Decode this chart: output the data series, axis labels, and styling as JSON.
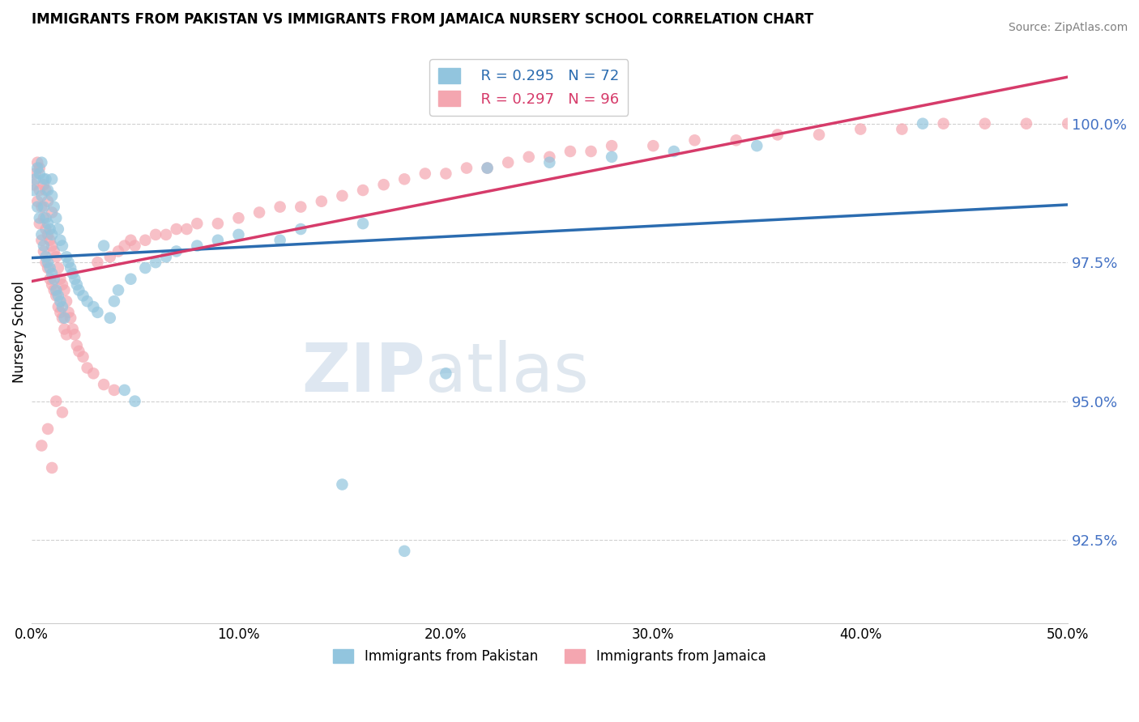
{
  "title": "IMMIGRANTS FROM PAKISTAN VS IMMIGRANTS FROM JAMAICA NURSERY SCHOOL CORRELATION CHART",
  "source": "Source: ZipAtlas.com",
  "ylabel": "Nursery School",
  "xlim": [
    0.0,
    0.5
  ],
  "ylim": [
    91.0,
    101.5
  ],
  "yticks": [
    92.5,
    95.0,
    97.5,
    100.0
  ],
  "ytick_labels": [
    "92.5%",
    "95.0%",
    "97.5%",
    "100.0%"
  ],
  "xticks": [
    0.0,
    0.1,
    0.2,
    0.3,
    0.4,
    0.5
  ],
  "xtick_labels": [
    "0.0%",
    "10.0%",
    "20.0%",
    "30.0%",
    "40.0%",
    "50.0%"
  ],
  "pakistan_color": "#92c5de",
  "jamaica_color": "#f4a6b0",
  "pakistan_line_color": "#2b6cb0",
  "jamaica_line_color": "#d63b6a",
  "legend_R_pakistan": "R = 0.295",
  "legend_N_pakistan": "N = 72",
  "legend_R_jamaica": "R = 0.297",
  "legend_N_jamaica": "N = 96",
  "pakistan_x": [
    0.001,
    0.002,
    0.003,
    0.003,
    0.004,
    0.004,
    0.005,
    0.005,
    0.005,
    0.006,
    0.006,
    0.006,
    0.007,
    0.007,
    0.007,
    0.008,
    0.008,
    0.008,
    0.009,
    0.009,
    0.01,
    0.01,
    0.01,
    0.01,
    0.011,
    0.011,
    0.012,
    0.012,
    0.013,
    0.013,
    0.014,
    0.014,
    0.015,
    0.015,
    0.016,
    0.017,
    0.018,
    0.019,
    0.02,
    0.021,
    0.022,
    0.023,
    0.025,
    0.027,
    0.03,
    0.032,
    0.035,
    0.038,
    0.04,
    0.042,
    0.045,
    0.048,
    0.05,
    0.055,
    0.06,
    0.065,
    0.07,
    0.08,
    0.09,
    0.1,
    0.12,
    0.13,
    0.15,
    0.16,
    0.18,
    0.2,
    0.22,
    0.25,
    0.28,
    0.31,
    0.35,
    0.43
  ],
  "pakistan_y": [
    98.8,
    99.0,
    98.5,
    99.2,
    98.3,
    99.1,
    98.0,
    98.7,
    99.3,
    97.8,
    98.5,
    99.0,
    97.6,
    98.3,
    99.0,
    97.5,
    98.2,
    98.8,
    97.4,
    98.1,
    97.3,
    98.0,
    98.7,
    99.0,
    97.2,
    98.5,
    97.0,
    98.3,
    96.9,
    98.1,
    96.8,
    97.9,
    96.7,
    97.8,
    96.5,
    97.6,
    97.5,
    97.4,
    97.3,
    97.2,
    97.1,
    97.0,
    96.9,
    96.8,
    96.7,
    96.6,
    97.8,
    96.5,
    96.8,
    97.0,
    95.2,
    97.2,
    95.0,
    97.4,
    97.5,
    97.6,
    97.7,
    97.8,
    97.9,
    98.0,
    97.9,
    98.1,
    93.5,
    98.2,
    92.3,
    95.5,
    99.2,
    99.3,
    99.4,
    99.5,
    99.6,
    100.0
  ],
  "jamaica_x": [
    0.001,
    0.002,
    0.003,
    0.003,
    0.004,
    0.004,
    0.004,
    0.005,
    0.005,
    0.006,
    0.006,
    0.006,
    0.007,
    0.007,
    0.007,
    0.008,
    0.008,
    0.008,
    0.009,
    0.009,
    0.01,
    0.01,
    0.01,
    0.011,
    0.011,
    0.012,
    0.012,
    0.013,
    0.013,
    0.014,
    0.014,
    0.015,
    0.015,
    0.016,
    0.016,
    0.017,
    0.017,
    0.018,
    0.019,
    0.02,
    0.021,
    0.022,
    0.023,
    0.025,
    0.027,
    0.03,
    0.032,
    0.035,
    0.038,
    0.04,
    0.042,
    0.045,
    0.048,
    0.05,
    0.055,
    0.06,
    0.065,
    0.07,
    0.075,
    0.08,
    0.09,
    0.1,
    0.11,
    0.12,
    0.13,
    0.14,
    0.15,
    0.16,
    0.17,
    0.18,
    0.19,
    0.2,
    0.21,
    0.22,
    0.23,
    0.24,
    0.25,
    0.26,
    0.27,
    0.28,
    0.3,
    0.32,
    0.34,
    0.36,
    0.38,
    0.4,
    0.42,
    0.44,
    0.46,
    0.48,
    0.5,
    0.005,
    0.008,
    0.01,
    0.012,
    0.015
  ],
  "jamaica_y": [
    98.9,
    99.1,
    98.6,
    99.3,
    98.2,
    98.8,
    99.2,
    97.9,
    98.5,
    97.7,
    98.3,
    98.9,
    97.5,
    98.1,
    98.8,
    97.4,
    98.0,
    98.6,
    97.2,
    97.9,
    97.1,
    97.8,
    98.4,
    97.0,
    97.7,
    96.9,
    97.6,
    96.7,
    97.4,
    96.6,
    97.2,
    96.5,
    97.1,
    96.3,
    97.0,
    96.2,
    96.8,
    96.6,
    96.5,
    96.3,
    96.2,
    96.0,
    95.9,
    95.8,
    95.6,
    95.5,
    97.5,
    95.3,
    97.6,
    95.2,
    97.7,
    97.8,
    97.9,
    97.8,
    97.9,
    98.0,
    98.0,
    98.1,
    98.1,
    98.2,
    98.2,
    98.3,
    98.4,
    98.5,
    98.5,
    98.6,
    98.7,
    98.8,
    98.9,
    99.0,
    99.1,
    99.1,
    99.2,
    99.2,
    99.3,
    99.4,
    99.4,
    99.5,
    99.5,
    99.6,
    99.6,
    99.7,
    99.7,
    99.8,
    99.8,
    99.9,
    99.9,
    100.0,
    100.0,
    100.0,
    100.0,
    94.2,
    94.5,
    93.8,
    95.0,
    94.8
  ],
  "watermark_zip": "ZIP",
  "watermark_atlas": "atlas",
  "bottom_legend_labels": [
    "Immigrants from Pakistan",
    "Immigrants from Jamaica"
  ]
}
